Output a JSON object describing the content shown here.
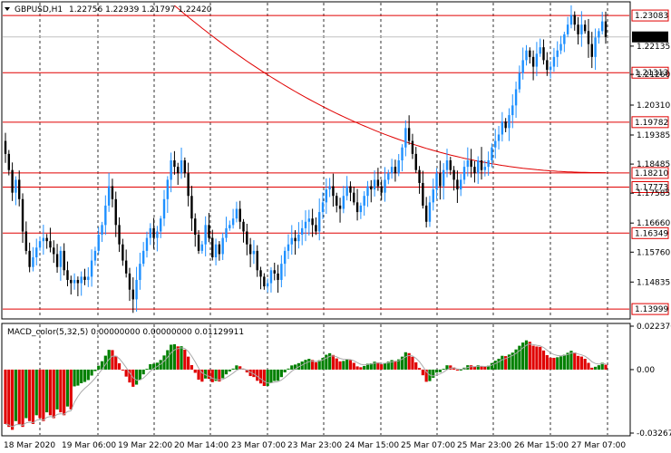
{
  "window": {
    "symbol": "GBPUSD,H1",
    "ohlc": "1.22756 1.22939 1.21797 1.22420",
    "indicator_title": "MACD_color(5,32,5) 0.00000000 0.00000000 0.01129911"
  },
  "colors": {
    "bull": "#1e90ff",
    "bear": "#000000",
    "level_line": "#e00000",
    "ma_line": "#e00000",
    "hist_pos": "#008000",
    "hist_neg": "#e00000",
    "current_price_bg": "#000000"
  },
  "current_price": "1.22420",
  "levels": [
    "1.23083",
    "1.21313",
    "1.19782",
    "1.18210",
    "1.17773",
    "1.16349",
    "1.13999"
  ],
  "price_ticks": [
    "1.22135",
    "1.21260",
    "1.20310",
    "1.19385",
    "1.18485",
    "1.17585",
    "1.16660",
    "1.15760",
    "1.14835"
  ],
  "macd_ticks": [
    "0.0223706",
    "0.00",
    "-0.0326791"
  ],
  "time_labels": [
    "18 Mar 2020",
    "19 Mar 06:00",
    "19 Mar 22:00",
    "20 Mar 14:00",
    "23 Mar 07:00",
    "23 Mar 23:00",
    "24 Mar 15:00",
    "25 Mar 07:00",
    "25 Mar 23:00",
    "26 Mar 15:00",
    "27 Mar 07:00"
  ],
  "chart_data": {
    "type": "candlestick",
    "price_range": [
      1.1375,
      1.2345
    ],
    "macd_range": [
      -0.0326791,
      0.0223706
    ],
    "closes": [
      1.188,
      1.183,
      1.176,
      1.18,
      1.174,
      1.164,
      1.158,
      1.153,
      1.156,
      1.159,
      1.161,
      1.162,
      1.161,
      1.159,
      1.157,
      1.153,
      1.158,
      1.152,
      1.149,
      1.148,
      1.149,
      1.148,
      1.15,
      1.149,
      1.15,
      1.155,
      1.158,
      1.163,
      1.166,
      1.172,
      1.178,
      1.174,
      1.166,
      1.16,
      1.155,
      1.151,
      1.146,
      1.143,
      1.149,
      1.154,
      1.158,
      1.162,
      1.165,
      1.162,
      1.164,
      1.168,
      1.174,
      1.18,
      1.186,
      1.184,
      1.182,
      1.186,
      1.182,
      1.175,
      1.168,
      1.163,
      1.158,
      1.16,
      1.166,
      1.162,
      1.156,
      1.16,
      1.157,
      1.162,
      1.165,
      1.166,
      1.168,
      1.171,
      1.167,
      1.164,
      1.16,
      1.157,
      1.158,
      1.152,
      1.15,
      1.147,
      1.148,
      1.152,
      1.151,
      1.149,
      1.154,
      1.158,
      1.16,
      1.162,
      1.161,
      1.163,
      1.165,
      1.167,
      1.168,
      1.166,
      1.164,
      1.17,
      1.173,
      1.177,
      1.178,
      1.175,
      1.172,
      1.171,
      1.175,
      1.178,
      1.176,
      1.173,
      1.17,
      1.172,
      1.175,
      1.178,
      1.177,
      1.18,
      1.178,
      1.176,
      1.18,
      1.182,
      1.184,
      1.182,
      1.186,
      1.19,
      1.196,
      1.192,
      1.188,
      1.183,
      1.179,
      1.172,
      1.167,
      1.173,
      1.177,
      1.182,
      1.178,
      1.183,
      1.186,
      1.183,
      1.18,
      1.177,
      1.18,
      1.184,
      1.186,
      1.184,
      1.182,
      1.186,
      1.183,
      1.184,
      1.186,
      1.19,
      1.192,
      1.194,
      1.198,
      1.196,
      1.2,
      1.203,
      1.208,
      1.213,
      1.217,
      1.22,
      1.218,
      1.215,
      1.219,
      1.221,
      1.217,
      1.214,
      1.215,
      1.218,
      1.22,
      1.222,
      1.225,
      1.228,
      1.231,
      1.228,
      1.225,
      1.228,
      1.226,
      1.222,
      1.218,
      1.224,
      1.226,
      1.229,
      1.2242
    ]
  }
}
